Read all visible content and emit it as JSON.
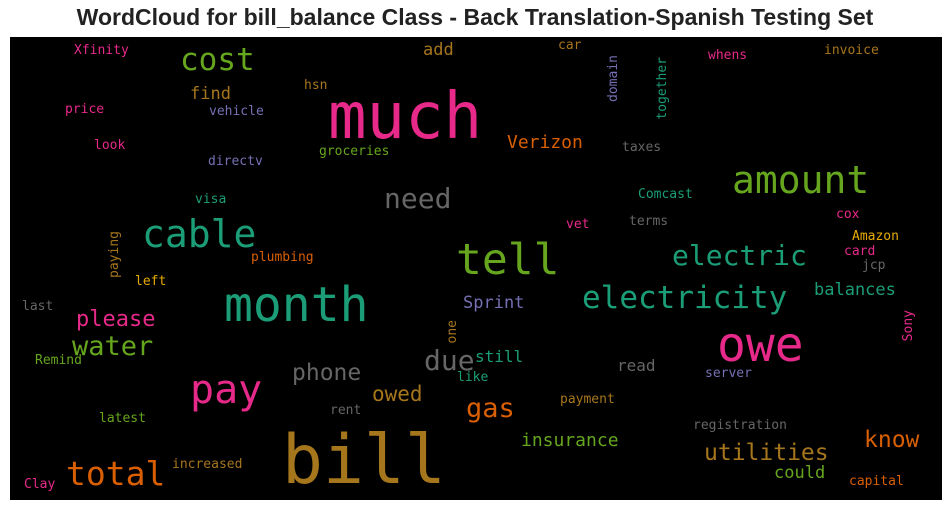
{
  "title": "WordCloud for bill_balance Class - Back Translation-Spanish Testing Set",
  "colors": {
    "pink": "#e7298a",
    "green": "#66a61e",
    "teal": "#1b9e77",
    "orange": "#d95f02",
    "gold": "#a6761d",
    "purple": "#7570b3",
    "gray": "#666666",
    "yellow": "#e6ab02"
  },
  "words": [
    {
      "id": "bill",
      "text": "bill",
      "color": "gold"
    },
    {
      "id": "much",
      "text": "much",
      "color": "pink"
    },
    {
      "id": "month",
      "text": "month",
      "color": "teal"
    },
    {
      "id": "owe",
      "text": "owe",
      "color": "pink"
    },
    {
      "id": "tell",
      "text": "tell",
      "color": "green"
    },
    {
      "id": "pay",
      "text": "pay",
      "color": "pink"
    },
    {
      "id": "cable",
      "text": "cable",
      "color": "teal"
    },
    {
      "id": "amount",
      "text": "amount",
      "color": "green"
    },
    {
      "id": "electricity",
      "text": "electricity",
      "color": "teal"
    },
    {
      "id": "total",
      "text": "total",
      "color": "orange"
    },
    {
      "id": "cost",
      "text": "cost",
      "color": "green"
    },
    {
      "id": "electric",
      "text": "electric",
      "color": "teal"
    },
    {
      "id": "water",
      "text": "water",
      "color": "green"
    },
    {
      "id": "need",
      "text": "need",
      "color": "gray"
    },
    {
      "id": "due",
      "text": "due",
      "color": "gray"
    },
    {
      "id": "utilities",
      "text": "utilities",
      "color": "gold"
    },
    {
      "id": "please",
      "text": "please",
      "color": "pink"
    },
    {
      "id": "phone",
      "text": "phone",
      "color": "gray"
    },
    {
      "id": "gas",
      "text": "gas",
      "color": "orange"
    },
    {
      "id": "know",
      "text": "know",
      "color": "orange"
    },
    {
      "id": "owed",
      "text": "owed",
      "color": "gold"
    },
    {
      "id": "insurance",
      "text": "insurance",
      "color": "green"
    },
    {
      "id": "verizon",
      "text": "Verizon",
      "color": "orange"
    },
    {
      "id": "sprint",
      "text": "Sprint",
      "color": "purple"
    },
    {
      "id": "balances",
      "text": "balances",
      "color": "teal"
    },
    {
      "id": "could",
      "text": "could",
      "color": "green"
    },
    {
      "id": "find",
      "text": "find",
      "color": "gold"
    },
    {
      "id": "add",
      "text": "add",
      "color": "gold"
    },
    {
      "id": "still",
      "text": "still",
      "color": "teal"
    },
    {
      "id": "read",
      "text": "read",
      "color": "gray"
    },
    {
      "id": "whens",
      "text": "whens",
      "color": "pink"
    },
    {
      "id": "invoice",
      "text": "invoice",
      "color": "gold"
    },
    {
      "id": "xfinity",
      "text": "Xfinity",
      "color": "pink"
    },
    {
      "id": "car",
      "text": "car",
      "color": "gold"
    },
    {
      "id": "hsn",
      "text": "hsn",
      "color": "gold"
    },
    {
      "id": "price",
      "text": "price",
      "color": "pink"
    },
    {
      "id": "vehicle",
      "text": "vehicle",
      "color": "purple"
    },
    {
      "id": "look",
      "text": "look",
      "color": "pink"
    },
    {
      "id": "groceries",
      "text": "groceries",
      "color": "green"
    },
    {
      "id": "taxes",
      "text": "taxes",
      "color": "gray"
    },
    {
      "id": "directv",
      "text": "directv",
      "color": "purple"
    },
    {
      "id": "comcast",
      "text": "Comcast",
      "color": "teal"
    },
    {
      "id": "visa",
      "text": "visa",
      "color": "teal"
    },
    {
      "id": "cox",
      "text": "cox",
      "color": "pink"
    },
    {
      "id": "vet",
      "text": "vet",
      "color": "pink"
    },
    {
      "id": "terms",
      "text": "terms",
      "color": "gray"
    },
    {
      "id": "amazon",
      "text": "Amazon",
      "color": "yellow"
    },
    {
      "id": "card",
      "text": "card",
      "color": "pink"
    },
    {
      "id": "plumbing",
      "text": "plumbing",
      "color": "orange"
    },
    {
      "id": "jcp",
      "text": "jcp",
      "color": "gray"
    },
    {
      "id": "left",
      "text": "left",
      "color": "yellow"
    },
    {
      "id": "last",
      "text": "last",
      "color": "gray"
    },
    {
      "id": "remind",
      "text": "Remind",
      "color": "green"
    },
    {
      "id": "like",
      "text": "like",
      "color": "teal"
    },
    {
      "id": "server",
      "text": "server",
      "color": "purple"
    },
    {
      "id": "rent",
      "text": "rent",
      "color": "gray"
    },
    {
      "id": "payment",
      "text": "payment",
      "color": "gold"
    },
    {
      "id": "latest",
      "text": "latest",
      "color": "green"
    },
    {
      "id": "registration",
      "text": "registration",
      "color": "gray"
    },
    {
      "id": "increased",
      "text": "increased",
      "color": "gold"
    },
    {
      "id": "capital",
      "text": "capital",
      "color": "orange"
    },
    {
      "id": "clay",
      "text": "Clay",
      "color": "pink"
    },
    {
      "id": "domain",
      "text": "domain",
      "color": "purple"
    },
    {
      "id": "together",
      "text": "together",
      "color": "teal"
    },
    {
      "id": "paying",
      "text": "paying",
      "color": "gold"
    },
    {
      "id": "one",
      "text": "one",
      "color": "gold"
    },
    {
      "id": "sony",
      "text": "Sony",
      "color": "pink"
    }
  ]
}
